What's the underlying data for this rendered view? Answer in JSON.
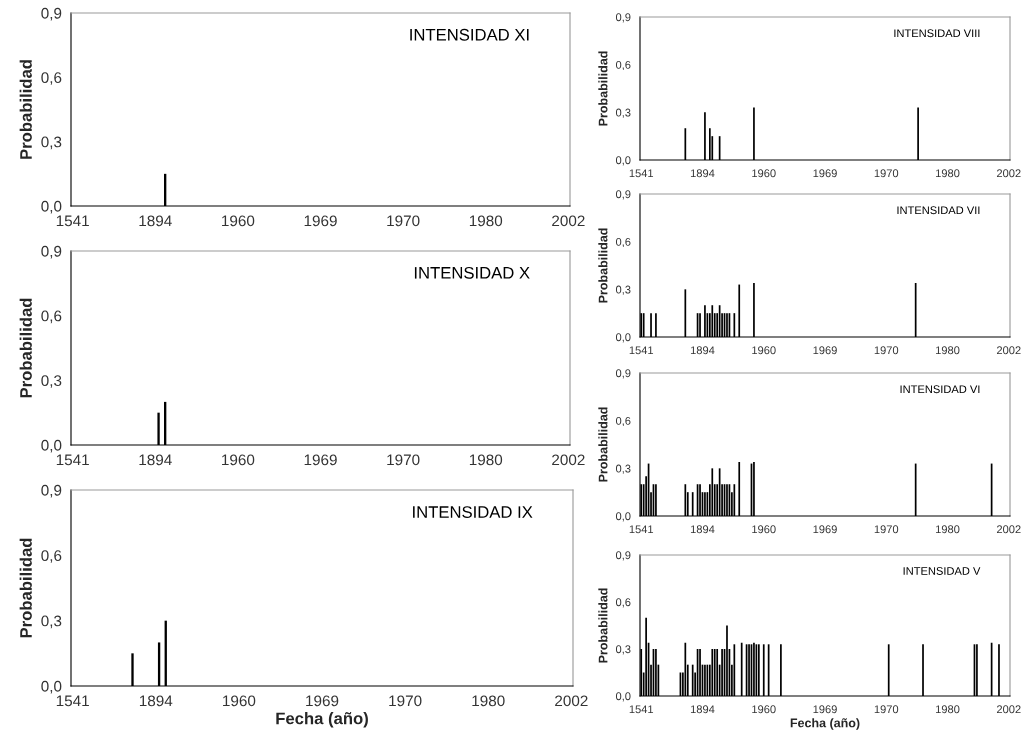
{
  "chart_data": [
    {
      "type": "bar",
      "title": "INTENSIDAD XI",
      "ylabel": "Probabilidad",
      "color": "#000000",
      "ylim": [
        0,
        0.9
      ],
      "grid": false,
      "yticks": [
        {
          "value": 0,
          "label": "0,0"
        },
        {
          "value": 0.3,
          "label": "0,3"
        },
        {
          "value": 0.6,
          "label": "0,6"
        },
        {
          "value": 0.9,
          "label": "0,9"
        }
      ],
      "categories": [
        "1541",
        null,
        null,
        null,
        null,
        null,
        null,
        null,
        null,
        null,
        null,
        null,
        null,
        null,
        null,
        null,
        null,
        null,
        null,
        null,
        null,
        null,
        null,
        null,
        null,
        "1894",
        null,
        null,
        null,
        null,
        null,
        null,
        null,
        null,
        null,
        null,
        null,
        null,
        null,
        null,
        null,
        null,
        null,
        null,
        null,
        null,
        null,
        null,
        null,
        null,
        "1960",
        null,
        null,
        null,
        null,
        null,
        null,
        null,
        null,
        null,
        null,
        null,
        null,
        null,
        null,
        null,
        null,
        null,
        null,
        null,
        null,
        null,
        null,
        null,
        null,
        "1969",
        null,
        null,
        null,
        null,
        null,
        null,
        null,
        null,
        null,
        null,
        null,
        null,
        null,
        null,
        null,
        null,
        null,
        null,
        null,
        null,
        null,
        null,
        null,
        null,
        "1970",
        null,
        null,
        null,
        null,
        null,
        null,
        null,
        null,
        null,
        null,
        null,
        null,
        null,
        null,
        null,
        null,
        null,
        null,
        null,
        null,
        null,
        null,
        null,
        null,
        "1980",
        null,
        null,
        null,
        null,
        null,
        null,
        null,
        null,
        null,
        null,
        null,
        null,
        null,
        null,
        null,
        null,
        null,
        null,
        null,
        null,
        null,
        null,
        null,
        null,
        "2002"
      ],
      "values": [
        null,
        null,
        null,
        null,
        null,
        null,
        null,
        null,
        null,
        null,
        null,
        null,
        null,
        null,
        null,
        null,
        null,
        null,
        null,
        null,
        null,
        null,
        null,
        null,
        null,
        null,
        null,
        null,
        0.15,
        null,
        null,
        null,
        null,
        null,
        null,
        null,
        null,
        null,
        null,
        null,
        null,
        null,
        null,
        null,
        null,
        null,
        null,
        null,
        null,
        null,
        null,
        null,
        null,
        null,
        null,
        null,
        null,
        null,
        null,
        null,
        null,
        null,
        null,
        null,
        null,
        null,
        null,
        null,
        null,
        null,
        null,
        null,
        null,
        null,
        null,
        null,
        null,
        null,
        null,
        null,
        null,
        null,
        null,
        null,
        null,
        null,
        null,
        null,
        null,
        null,
        null,
        null,
        null,
        null,
        null,
        null,
        null,
        null,
        null,
        null,
        null,
        null,
        null,
        null,
        null,
        null,
        null,
        null,
        null,
        null,
        null,
        null,
        null,
        null,
        null,
        null,
        null,
        null,
        null,
        null,
        null,
        null,
        null,
        null,
        null,
        null,
        null,
        null,
        null,
        null,
        null,
        null,
        null,
        null,
        null,
        null,
        null,
        null,
        null,
        null,
        null,
        null,
        null,
        null,
        null,
        null,
        null,
        null,
        null,
        null,
        null
      ]
    },
    {
      "type": "bar",
      "title": "INTENSIDAD X",
      "ylabel": "Probabilidad",
      "color": "#000000",
      "ylim": [
        0,
        0.9
      ],
      "grid": false,
      "yticks": [
        {
          "value": 0,
          "label": "0,0"
        },
        {
          "value": 0.3,
          "label": "0,3"
        },
        {
          "value": 0.6,
          "label": "0,6"
        },
        {
          "value": 0.9,
          "label": "0,9"
        }
      ],
      "categories": [
        "1541",
        null,
        null,
        null,
        null,
        null,
        null,
        null,
        null,
        null,
        null,
        null,
        null,
        null,
        null,
        null,
        null,
        null,
        null,
        null,
        null,
        null,
        null,
        null,
        null,
        "1894",
        null,
        null,
        null,
        null,
        null,
        null,
        null,
        null,
        null,
        null,
        null,
        null,
        null,
        null,
        null,
        null,
        null,
        null,
        null,
        null,
        null,
        null,
        null,
        null,
        "1960",
        null,
        null,
        null,
        null,
        null,
        null,
        null,
        null,
        null,
        null,
        null,
        null,
        null,
        null,
        null,
        null,
        null,
        null,
        null,
        null,
        null,
        null,
        null,
        null,
        "1969",
        null,
        null,
        null,
        null,
        null,
        null,
        null,
        null,
        null,
        null,
        null,
        null,
        null,
        null,
        null,
        null,
        null,
        null,
        null,
        null,
        null,
        null,
        null,
        null,
        "1970",
        null,
        null,
        null,
        null,
        null,
        null,
        null,
        null,
        null,
        null,
        null,
        null,
        null,
        null,
        null,
        null,
        null,
        null,
        null,
        null,
        null,
        null,
        null,
        null,
        "1980",
        null,
        null,
        null,
        null,
        null,
        null,
        null,
        null,
        null,
        null,
        null,
        null,
        null,
        null,
        null,
        null,
        null,
        null,
        null,
        null,
        null,
        null,
        null,
        null,
        "2002"
      ],
      "values": [
        null,
        null,
        null,
        null,
        null,
        null,
        null,
        null,
        null,
        null,
        null,
        null,
        null,
        null,
        null,
        null,
        null,
        null,
        null,
        null,
        null,
        null,
        null,
        null,
        null,
        null,
        0.15,
        null,
        0.2,
        null,
        null,
        null,
        null,
        null,
        null,
        null,
        null,
        null,
        null,
        null,
        null,
        null,
        null,
        null,
        null,
        null,
        null,
        null,
        null,
        null,
        null,
        null,
        null,
        null,
        null,
        null,
        null,
        null,
        null,
        null,
        null,
        null,
        null,
        null,
        null,
        null,
        null,
        null,
        null,
        null,
        null,
        null,
        null,
        null,
        null,
        null,
        null,
        null,
        null,
        null,
        null,
        null,
        null,
        null,
        null,
        null,
        null,
        null,
        null,
        null,
        null,
        null,
        null,
        null,
        null,
        null,
        null,
        null,
        null,
        null,
        null,
        null,
        null,
        null,
        null,
        null,
        null,
        null,
        null,
        null,
        null,
        null,
        null,
        null,
        null,
        null,
        null,
        null,
        null,
        null,
        null,
        null,
        null,
        null,
        null,
        null,
        null,
        null,
        null,
        null,
        null,
        null,
        null,
        null,
        null,
        null,
        null,
        null,
        null,
        null,
        null,
        null,
        null,
        null,
        null,
        null,
        null,
        null,
        null,
        null,
        null
      ]
    },
    {
      "type": "bar",
      "title": "INTENSIDAD IX",
      "ylabel": "Probabilidad",
      "xlabel": "Fecha (año)",
      "color": "#000000",
      "ylim": [
        0,
        0.9
      ],
      "grid": false,
      "yticks": [
        {
          "value": 0,
          "label": "0,0"
        },
        {
          "value": 0.3,
          "label": "0,3"
        },
        {
          "value": 0.6,
          "label": "0,6"
        },
        {
          "value": 0.9,
          "label": "0,9"
        }
      ],
      "categories": [
        "1541",
        null,
        null,
        null,
        null,
        null,
        null,
        null,
        null,
        null,
        null,
        null,
        null,
        null,
        null,
        null,
        null,
        null,
        null,
        null,
        null,
        null,
        null,
        null,
        null,
        "1894",
        null,
        null,
        null,
        null,
        null,
        null,
        null,
        null,
        null,
        null,
        null,
        null,
        null,
        null,
        null,
        null,
        null,
        null,
        null,
        null,
        null,
        null,
        null,
        null,
        "1960",
        null,
        null,
        null,
        null,
        null,
        null,
        null,
        null,
        null,
        null,
        null,
        null,
        null,
        null,
        null,
        null,
        null,
        null,
        null,
        null,
        null,
        null,
        null,
        null,
        "1969",
        null,
        null,
        null,
        null,
        null,
        null,
        null,
        null,
        null,
        null,
        null,
        null,
        null,
        null,
        null,
        null,
        null,
        null,
        null,
        null,
        null,
        null,
        null,
        null,
        "1970",
        null,
        null,
        null,
        null,
        null,
        null,
        null,
        null,
        null,
        null,
        null,
        null,
        null,
        null,
        null,
        null,
        null,
        null,
        null,
        null,
        null,
        null,
        null,
        null,
        "1980",
        null,
        null,
        null,
        null,
        null,
        null,
        null,
        null,
        null,
        null,
        null,
        null,
        null,
        null,
        null,
        null,
        null,
        null,
        null,
        null,
        null,
        null,
        null,
        null,
        "2002"
      ],
      "values": [
        null,
        null,
        null,
        null,
        null,
        null,
        null,
        null,
        null,
        null,
        null,
        null,
        null,
        null,
        null,
        null,
        null,
        null,
        0.15,
        null,
        null,
        null,
        null,
        null,
        null,
        null,
        0.2,
        null,
        0.3,
        null,
        null,
        null,
        null,
        null,
        null,
        null,
        null,
        null,
        null,
        null,
        null,
        null,
        null,
        null,
        null,
        null,
        null,
        null,
        null,
        null,
        null,
        null,
        null,
        null,
        null,
        null,
        null,
        null,
        null,
        null,
        null,
        null,
        null,
        null,
        null,
        null,
        null,
        null,
        null,
        null,
        null,
        null,
        null,
        null,
        null,
        null,
        null,
        null,
        null,
        null,
        null,
        null,
        null,
        null,
        null,
        null,
        null,
        null,
        null,
        null,
        null,
        null,
        null,
        null,
        null,
        null,
        null,
        null,
        null,
        null,
        null,
        null,
        null,
        null,
        null,
        null,
        null,
        null,
        null,
        null,
        null,
        null,
        null,
        null,
        null,
        null,
        null,
        null,
        null,
        null,
        null,
        null,
        null,
        null,
        null,
        null,
        null,
        null,
        null,
        null,
        null,
        null,
        null,
        null,
        null,
        null,
        null,
        null,
        null,
        null,
        null,
        null,
        null,
        null,
        null,
        null,
        null,
        null,
        null,
        null,
        null
      ]
    },
    {
      "type": "bar",
      "title": "INTENSIDAD VIII",
      "ylabel": "Probabilidad",
      "color": "#000000",
      "ylim": [
        0,
        0.9
      ],
      "grid": false,
      "yticks": [
        {
          "value": 0,
          "label": "0,0"
        },
        {
          "value": 0.3,
          "label": "0,3"
        },
        {
          "value": 0.6,
          "label": "0,6"
        },
        {
          "value": 0.9,
          "label": "0,9"
        }
      ],
      "categories": [
        "1541",
        null,
        null,
        null,
        null,
        null,
        null,
        null,
        null,
        null,
        null,
        null,
        null,
        null,
        null,
        null,
        null,
        null,
        null,
        null,
        null,
        null,
        null,
        null,
        null,
        "1894",
        null,
        null,
        null,
        null,
        null,
        null,
        null,
        null,
        null,
        null,
        null,
        null,
        null,
        null,
        null,
        null,
        null,
        null,
        null,
        null,
        null,
        null,
        null,
        null,
        "1960",
        null,
        null,
        null,
        null,
        null,
        null,
        null,
        null,
        null,
        null,
        null,
        null,
        null,
        null,
        null,
        null,
        null,
        null,
        null,
        null,
        null,
        null,
        null,
        null,
        "1969",
        null,
        null,
        null,
        null,
        null,
        null,
        null,
        null,
        null,
        null,
        null,
        null,
        null,
        null,
        null,
        null,
        null,
        null,
        null,
        null,
        null,
        null,
        null,
        null,
        "1970",
        null,
        null,
        null,
        null,
        null,
        null,
        null,
        null,
        null,
        null,
        null,
        null,
        null,
        null,
        null,
        null,
        null,
        null,
        null,
        null,
        null,
        null,
        null,
        null,
        "1980",
        null,
        null,
        null,
        null,
        null,
        null,
        null,
        null,
        null,
        null,
        null,
        null,
        null,
        null,
        null,
        null,
        null,
        null,
        null,
        null,
        null,
        null,
        null,
        null,
        "2002"
      ],
      "values": [
        null,
        null,
        null,
        null,
        null,
        null,
        null,
        null,
        null,
        null,
        null,
        null,
        null,
        null,
        null,
        null,
        null,
        null,
        0.2,
        null,
        null,
        null,
        null,
        null,
        null,
        null,
        0.3,
        null,
        0.2,
        0.15,
        null,
        null,
        0.15,
        null,
        null,
        null,
        null,
        null,
        null,
        null,
        null,
        null,
        null,
        null,
        null,
        null,
        0.33,
        null,
        null,
        null,
        null,
        null,
        null,
        null,
        null,
        null,
        null,
        null,
        null,
        null,
        null,
        null,
        null,
        null,
        null,
        null,
        null,
        null,
        null,
        null,
        null,
        null,
        null,
        null,
        null,
        null,
        null,
        null,
        null,
        null,
        null,
        null,
        null,
        null,
        null,
        null,
        null,
        null,
        null,
        null,
        null,
        null,
        null,
        null,
        null,
        null,
        null,
        null,
        null,
        null,
        null,
        null,
        null,
        null,
        null,
        null,
        null,
        null,
        null,
        null,
        null,
        null,
        null,
        0.33,
        null,
        null,
        null,
        null,
        null,
        null,
        null,
        null,
        null,
        null,
        null,
        null,
        null,
        null,
        null,
        null,
        null,
        null,
        null,
        null,
        null,
        null,
        null,
        null,
        null,
        null,
        null,
        null,
        null,
        null,
        null,
        null,
        null,
        null,
        null,
        null,
        null
      ]
    },
    {
      "type": "bar",
      "title": "INTENSIDAD VII",
      "ylabel": "Probabilidad",
      "color": "#000000",
      "ylim": [
        0,
        0.9
      ],
      "grid": false,
      "yticks": [
        {
          "value": 0,
          "label": "0,0"
        },
        {
          "value": 0.3,
          "label": "0,3"
        },
        {
          "value": 0.6,
          "label": "0,6"
        },
        {
          "value": 0.9,
          "label": "0,9"
        }
      ],
      "categories": [
        "1541",
        null,
        null,
        null,
        null,
        null,
        null,
        null,
        null,
        null,
        null,
        null,
        null,
        null,
        null,
        null,
        null,
        null,
        null,
        null,
        null,
        null,
        null,
        null,
        null,
        "1894",
        null,
        null,
        null,
        null,
        null,
        null,
        null,
        null,
        null,
        null,
        null,
        null,
        null,
        null,
        null,
        null,
        null,
        null,
        null,
        null,
        null,
        null,
        null,
        null,
        "1960",
        null,
        null,
        null,
        null,
        null,
        null,
        null,
        null,
        null,
        null,
        null,
        null,
        null,
        null,
        null,
        null,
        null,
        null,
        null,
        null,
        null,
        null,
        null,
        null,
        "1969",
        null,
        null,
        null,
        null,
        null,
        null,
        null,
        null,
        null,
        null,
        null,
        null,
        null,
        null,
        null,
        null,
        null,
        null,
        null,
        null,
        null,
        null,
        null,
        null,
        "1970",
        null,
        null,
        null,
        null,
        null,
        null,
        null,
        null,
        null,
        null,
        null,
        null,
        null,
        null,
        null,
        null,
        null,
        null,
        null,
        null,
        null,
        null,
        null,
        null,
        "1980",
        null,
        null,
        null,
        null,
        null,
        null,
        null,
        null,
        null,
        null,
        null,
        null,
        null,
        null,
        null,
        null,
        null,
        null,
        null,
        null,
        null,
        null,
        null,
        null,
        "2002"
      ],
      "values": [
        0.15,
        0.15,
        null,
        null,
        0.15,
        null,
        0.15,
        null,
        null,
        null,
        null,
        null,
        null,
        null,
        null,
        null,
        null,
        null,
        0.3,
        null,
        null,
        null,
        null,
        0.15,
        0.15,
        null,
        0.2,
        0.15,
        0.15,
        0.2,
        0.15,
        0.15,
        0.2,
        0.15,
        0.15,
        0.15,
        0.15,
        null,
        0.15,
        null,
        0.33,
        null,
        null,
        null,
        null,
        null,
        0.34,
        null,
        null,
        null,
        null,
        null,
        null,
        null,
        null,
        null,
        null,
        null,
        null,
        null,
        null,
        null,
        null,
        null,
        null,
        null,
        null,
        null,
        null,
        null,
        null,
        null,
        null,
        null,
        null,
        null,
        null,
        null,
        null,
        null,
        null,
        null,
        null,
        null,
        null,
        null,
        null,
        null,
        null,
        null,
        null,
        null,
        null,
        null,
        null,
        null,
        null,
        null,
        null,
        null,
        null,
        null,
        null,
        null,
        null,
        null,
        null,
        null,
        null,
        null,
        null,
        null,
        0.34,
        null,
        null,
        null,
        null,
        null,
        null,
        null,
        null,
        null,
        null,
        null,
        null,
        null,
        null,
        null,
        null,
        null,
        null,
        null,
        null,
        null,
        null,
        null,
        null,
        null,
        null,
        null,
        null,
        null,
        null,
        null,
        null,
        null,
        null,
        null,
        null,
        null,
        null
      ]
    },
    {
      "type": "bar",
      "title": "INTENSIDAD VI",
      "ylabel": "Probabilidad",
      "color": "#000000",
      "ylim": [
        0,
        0.9
      ],
      "grid": false,
      "yticks": [
        {
          "value": 0,
          "label": "0,0"
        },
        {
          "value": 0.3,
          "label": "0,3"
        },
        {
          "value": 0.6,
          "label": "0,6"
        },
        {
          "value": 0.9,
          "label": "0,9"
        }
      ],
      "categories": [
        "1541",
        null,
        null,
        null,
        null,
        null,
        null,
        null,
        null,
        null,
        null,
        null,
        null,
        null,
        null,
        null,
        null,
        null,
        null,
        null,
        null,
        null,
        null,
        null,
        null,
        "1894",
        null,
        null,
        null,
        null,
        null,
        null,
        null,
        null,
        null,
        null,
        null,
        null,
        null,
        null,
        null,
        null,
        null,
        null,
        null,
        null,
        null,
        null,
        null,
        null,
        "1960",
        null,
        null,
        null,
        null,
        null,
        null,
        null,
        null,
        null,
        null,
        null,
        null,
        null,
        null,
        null,
        null,
        null,
        null,
        null,
        null,
        null,
        null,
        null,
        null,
        "1969",
        null,
        null,
        null,
        null,
        null,
        null,
        null,
        null,
        null,
        null,
        null,
        null,
        null,
        null,
        null,
        null,
        null,
        null,
        null,
        null,
        null,
        null,
        null,
        null,
        "1970",
        null,
        null,
        null,
        null,
        null,
        null,
        null,
        null,
        null,
        null,
        null,
        null,
        null,
        null,
        null,
        null,
        null,
        null,
        null,
        null,
        null,
        null,
        null,
        null,
        "1980",
        null,
        null,
        null,
        null,
        null,
        null,
        null,
        null,
        null,
        null,
        null,
        null,
        null,
        null,
        null,
        null,
        null,
        null,
        null,
        null,
        null,
        null,
        null,
        null,
        "2002"
      ],
      "values": [
        0.2,
        0.2,
        0.25,
        0.33,
        0.15,
        0.2,
        0.2,
        null,
        null,
        null,
        null,
        null,
        null,
        null,
        null,
        null,
        null,
        null,
        0.2,
        0.15,
        null,
        0.15,
        null,
        0.2,
        0.2,
        0.15,
        0.15,
        0.15,
        0.2,
        0.3,
        0.2,
        0.2,
        0.3,
        0.2,
        0.2,
        0.2,
        0.2,
        0.15,
        0.2,
        null,
        0.34,
        null,
        null,
        null,
        null,
        0.33,
        0.34,
        null,
        null,
        null,
        null,
        null,
        null,
        null,
        null,
        null,
        null,
        null,
        null,
        null,
        null,
        null,
        null,
        null,
        null,
        null,
        null,
        null,
        null,
        null,
        null,
        null,
        null,
        null,
        null,
        null,
        null,
        null,
        null,
        null,
        null,
        null,
        null,
        null,
        null,
        null,
        null,
        null,
        null,
        null,
        null,
        null,
        null,
        null,
        null,
        null,
        null,
        null,
        null,
        null,
        null,
        null,
        null,
        null,
        null,
        null,
        null,
        null,
        null,
        null,
        null,
        null,
        0.33,
        null,
        null,
        null,
        null,
        null,
        null,
        null,
        null,
        null,
        null,
        null,
        null,
        null,
        null,
        null,
        null,
        null,
        null,
        null,
        null,
        null,
        null,
        null,
        null,
        null,
        null,
        null,
        null,
        null,
        null,
        0.33,
        null,
        null,
        null,
        null,
        null,
        null,
        null
      ]
    },
    {
      "type": "bar",
      "title": "INTENSIDAD V",
      "ylabel": "Probabilidad",
      "xlabel": "Fecha (año)",
      "color": "#000000",
      "ylim": [
        0,
        0.9
      ],
      "grid": false,
      "yticks": [
        {
          "value": 0,
          "label": "0,0"
        },
        {
          "value": 0.3,
          "label": "0,3"
        },
        {
          "value": 0.6,
          "label": "0,6"
        },
        {
          "value": 0.9,
          "label": "0,9"
        }
      ],
      "categories": [
        "1541",
        null,
        null,
        null,
        null,
        null,
        null,
        null,
        null,
        null,
        null,
        null,
        null,
        null,
        null,
        null,
        null,
        null,
        null,
        null,
        null,
        null,
        null,
        null,
        null,
        "1894",
        null,
        null,
        null,
        null,
        null,
        null,
        null,
        null,
        null,
        null,
        null,
        null,
        null,
        null,
        null,
        null,
        null,
        null,
        null,
        null,
        null,
        null,
        null,
        null,
        "1960",
        null,
        null,
        null,
        null,
        null,
        null,
        null,
        null,
        null,
        null,
        null,
        null,
        null,
        null,
        null,
        null,
        null,
        null,
        null,
        null,
        null,
        null,
        null,
        null,
        "1969",
        null,
        null,
        null,
        null,
        null,
        null,
        null,
        null,
        null,
        null,
        null,
        null,
        null,
        null,
        null,
        null,
        null,
        null,
        null,
        null,
        null,
        null,
        null,
        null,
        "1970",
        null,
        null,
        null,
        null,
        null,
        null,
        null,
        null,
        null,
        null,
        null,
        null,
        null,
        null,
        null,
        null,
        null,
        null,
        null,
        null,
        null,
        null,
        null,
        null,
        "1980",
        null,
        null,
        null,
        null,
        null,
        null,
        null,
        null,
        null,
        null,
        null,
        null,
        null,
        null,
        null,
        null,
        null,
        null,
        null,
        null,
        null,
        null,
        null,
        null,
        "2002"
      ],
      "values": [
        0.3,
        0.15,
        0.5,
        0.34,
        0.2,
        0.3,
        0.3,
        0.2,
        null,
        null,
        null,
        null,
        null,
        null,
        null,
        null,
        0.15,
        0.15,
        0.34,
        0.2,
        null,
        0.2,
        0.15,
        0.3,
        0.3,
        0.2,
        0.2,
        0.2,
        0.2,
        0.3,
        0.3,
        0.3,
        0.2,
        0.3,
        0.3,
        0.45,
        0.3,
        0.2,
        0.33,
        null,
        null,
        0.34,
        null,
        0.33,
        0.33,
        0.33,
        0.34,
        0.33,
        0.33,
        null,
        0.33,
        null,
        0.33,
        null,
        null,
        null,
        null,
        0.33,
        null,
        null,
        null,
        null,
        null,
        null,
        null,
        null,
        null,
        null,
        null,
        null,
        null,
        null,
        null,
        null,
        null,
        null,
        null,
        null,
        null,
        null,
        null,
        null,
        null,
        null,
        null,
        null,
        null,
        null,
        null,
        null,
        null,
        null,
        null,
        null,
        null,
        null,
        null,
        null,
        null,
        null,
        null,
        0.33,
        null,
        null,
        null,
        null,
        null,
        null,
        null,
        null,
        null,
        null,
        null,
        null,
        null,
        0.33,
        null,
        null,
        null,
        null,
        null,
        null,
        null,
        null,
        null,
        null,
        null,
        null,
        null,
        null,
        null,
        null,
        null,
        null,
        null,
        null,
        0.33,
        0.33,
        null,
        null,
        null,
        null,
        null,
        0.34,
        null,
        null,
        0.33,
        null,
        null,
        null,
        null
      ]
    }
  ]
}
